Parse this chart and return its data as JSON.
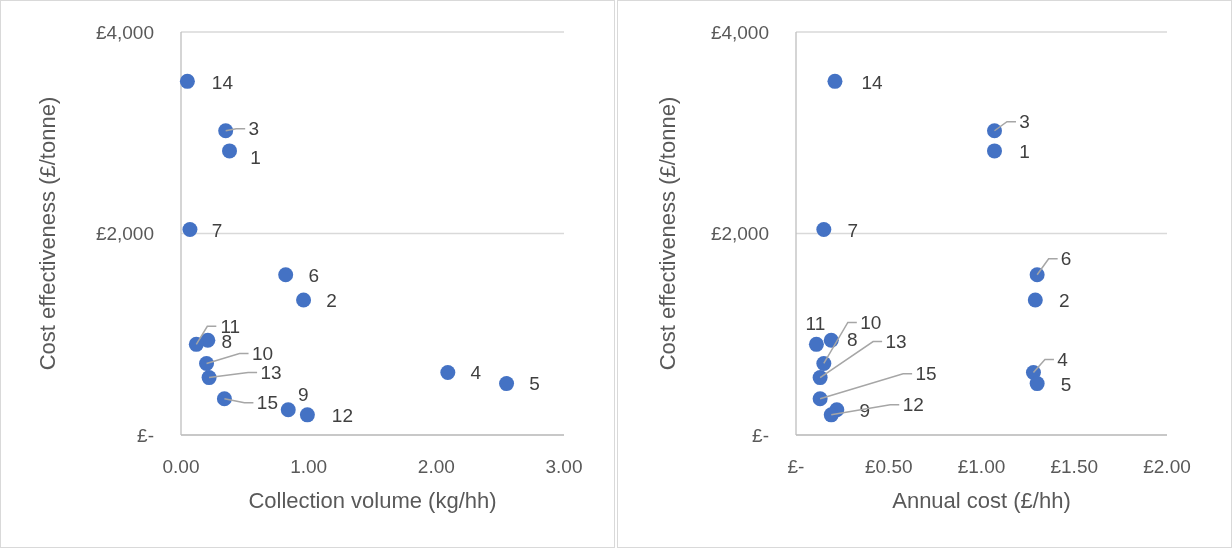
{
  "chart_data": [
    {
      "type": "scatter",
      "xlabel": "Collection volume (kg/hh)",
      "ylabel": "Cost effectiveness (£/tonne)",
      "xlim": [
        0,
        3
      ],
      "xticks": [
        {
          "value": 0,
          "label": "0.00"
        },
        {
          "value": 1,
          "label": "1.00"
        },
        {
          "value": 2,
          "label": "2.00"
        },
        {
          "value": 3,
          "label": "3.00"
        }
      ],
      "ylim": [
        0,
        4000
      ],
      "yticks": [
        {
          "value": 0,
          "label": "£-"
        },
        {
          "value": 2000,
          "label": "£2,000"
        },
        {
          "value": 4000,
          "label": "£4,000"
        }
      ],
      "grid": "y",
      "marker": "circle",
      "series": [
        {
          "color": "#4472c4",
          "x": [
            0.38,
            0.96,
            0.35,
            2.09,
            2.55,
            0.82,
            0.07,
            0.21,
            0.84,
            0.2,
            0.12,
            0.99,
            0.22,
            0.05,
            0.34
          ],
          "values": [
            2820,
            1340,
            3020,
            620,
            510,
            1590,
            2040,
            940,
            250,
            710,
            900,
            200,
            570,
            3510,
            360
          ]
        }
      ],
      "annotations": [
        {
          "text": "1",
          "x": 0.38,
          "y": 2820
        },
        {
          "text": "2",
          "x": 0.96,
          "y": 1340
        },
        {
          "text": "3",
          "x": 0.35,
          "y": 3020
        },
        {
          "text": "4",
          "x": 2.09,
          "y": 620
        },
        {
          "text": "5",
          "x": 2.55,
          "y": 510
        },
        {
          "text": "6",
          "x": 0.82,
          "y": 1590
        },
        {
          "text": "7",
          "x": 0.07,
          "y": 2040
        },
        {
          "text": "8",
          "x": 0.21,
          "y": 940
        },
        {
          "text": "9",
          "x": 0.84,
          "y": 250
        },
        {
          "text": "10",
          "x": 0.2,
          "y": 710
        },
        {
          "text": "11",
          "x": 0.12,
          "y": 900
        },
        {
          "text": "12",
          "x": 0.99,
          "y": 200
        },
        {
          "text": "13",
          "x": 0.22,
          "y": 570
        },
        {
          "text": "14",
          "x": 0.05,
          "y": 3510
        },
        {
          "text": "15",
          "x": 0.34,
          "y": 360
        }
      ]
    },
    {
      "type": "scatter",
      "xlabel": "Annual cost (£/hh)",
      "ylabel": "Cost effectiveness (£/tonne)",
      "xlim": [
        0,
        2
      ],
      "xticks": [
        {
          "value": 0,
          "label": "£-"
        },
        {
          "value": 0.5,
          "label": "£0.50"
        },
        {
          "value": 1,
          "label": "£1.00"
        },
        {
          "value": 1.5,
          "label": "£1.50"
        },
        {
          "value": 2,
          "label": "£2.00"
        }
      ],
      "ylim": [
        0,
        4000
      ],
      "yticks": [
        {
          "value": 0,
          "label": "£-"
        },
        {
          "value": 2000,
          "label": "£2,000"
        },
        {
          "value": 4000,
          "label": "£4,000"
        }
      ],
      "grid": "y",
      "marker": "circle",
      "series": [
        {
          "color": "#4472c4",
          "x": [
            1.07,
            1.29,
            1.07,
            1.28,
            1.3,
            1.3,
            0.15,
            0.19,
            0.22,
            0.15,
            0.11,
            0.19,
            0.13,
            0.21,
            0.13
          ],
          "values": [
            2820,
            1340,
            3020,
            620,
            510,
            1590,
            2040,
            940,
            250,
            710,
            900,
            200,
            570,
            3510,
            360
          ]
        }
      ],
      "annotations": [
        {
          "text": "1",
          "x": 1.07,
          "y": 2820
        },
        {
          "text": "2",
          "x": 1.29,
          "y": 1340
        },
        {
          "text": "3",
          "x": 1.07,
          "y": 3020
        },
        {
          "text": "4",
          "x": 1.28,
          "y": 620
        },
        {
          "text": "5",
          "x": 1.3,
          "y": 510
        },
        {
          "text": "6",
          "x": 1.3,
          "y": 1590
        },
        {
          "text": "7",
          "x": 0.15,
          "y": 2040
        },
        {
          "text": "8",
          "x": 0.19,
          "y": 940
        },
        {
          "text": "9",
          "x": 0.22,
          "y": 250
        },
        {
          "text": "10",
          "x": 0.15,
          "y": 710
        },
        {
          "text": "11",
          "x": 0.11,
          "y": 900
        },
        {
          "text": "12",
          "x": 0.19,
          "y": 200
        },
        {
          "text": "13",
          "x": 0.13,
          "y": 570
        },
        {
          "text": "14",
          "x": 0.21,
          "y": 3510
        },
        {
          "text": "15",
          "x": 0.13,
          "y": 360
        }
      ]
    }
  ]
}
